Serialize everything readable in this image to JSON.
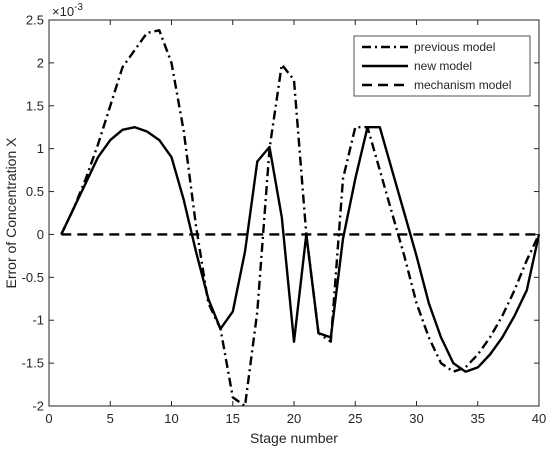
{
  "chart_data": {
    "type": "line",
    "xlabel": "Stage number",
    "ylabel": "Error of Concentration X",
    "y_multiplier_label": "×10",
    "y_multiplier_exponent": "-3",
    "xlim": [
      0,
      40
    ],
    "ylim": [
      -2,
      2.5
    ],
    "xticks": [
      0,
      5,
      10,
      15,
      20,
      25,
      30,
      35,
      40
    ],
    "yticks": [
      -2,
      -1.5,
      -1,
      -0.5,
      0,
      0.5,
      1,
      1.5,
      2,
      2.5
    ],
    "xtick_labels": [
      "0",
      "5",
      "10",
      "15",
      "20",
      "25",
      "30",
      "35",
      "40"
    ],
    "ytick_labels": [
      "-2",
      "-1.5",
      "-1",
      "-0.5",
      "0",
      "0.5",
      "1",
      "1.5",
      "2",
      "2.5"
    ],
    "grid": false,
    "legend_position": "top-right",
    "colors": {
      "line": "#000000",
      "axis": "#262626"
    },
    "series": [
      {
        "name": "previous model",
        "style": "dashdot",
        "x": [
          1,
          2,
          3,
          4,
          5,
          6,
          7,
          8,
          9,
          10,
          11,
          12,
          13,
          14,
          15,
          16,
          17,
          18,
          19,
          20,
          21,
          22,
          23,
          24,
          25,
          26,
          27,
          28,
          29,
          30,
          31,
          32,
          33,
          34,
          35,
          36,
          37,
          38,
          39,
          40
        ],
        "y": [
          0,
          0.3,
          0.65,
          1.05,
          1.5,
          1.95,
          2.15,
          2.35,
          2.38,
          2.0,
          1.2,
          0.1,
          -0.8,
          -1.1,
          -1.9,
          -2.0,
          -0.9,
          1.0,
          1.98,
          1.8,
          0,
          -1.15,
          -1.25,
          0.65,
          1.25,
          1.25,
          0.75,
          0.25,
          -0.25,
          -0.8,
          -1.2,
          -1.5,
          -1.6,
          -1.55,
          -1.4,
          -1.2,
          -0.95,
          -0.65,
          -0.3,
          0
        ]
      },
      {
        "name": "new model",
        "style": "solid",
        "x": [
          1,
          2,
          3,
          4,
          5,
          6,
          7,
          8,
          9,
          10,
          11,
          12,
          13,
          14,
          15,
          16,
          17,
          18,
          19,
          20,
          21,
          22,
          23,
          24,
          25,
          26,
          27,
          28,
          29,
          30,
          31,
          32,
          33,
          34,
          35,
          36,
          37,
          38,
          39,
          40
        ],
        "y": [
          0,
          0.3,
          0.6,
          0.9,
          1.1,
          1.22,
          1.25,
          1.2,
          1.1,
          0.9,
          0.4,
          -0.2,
          -0.75,
          -1.1,
          -0.9,
          -0.2,
          0.85,
          1.02,
          0.2,
          -1.25,
          0,
          -1.15,
          -1.2,
          -0.05,
          0.65,
          1.25,
          1.25,
          0.75,
          0.25,
          -0.25,
          -0.8,
          -1.2,
          -1.5,
          -1.6,
          -1.55,
          -1.4,
          -1.2,
          -0.95,
          -0.65,
          0
        ]
      },
      {
        "name": "mechanism model",
        "style": "dashed",
        "x": [
          1,
          40
        ],
        "y": [
          0,
          0
        ]
      }
    ]
  }
}
